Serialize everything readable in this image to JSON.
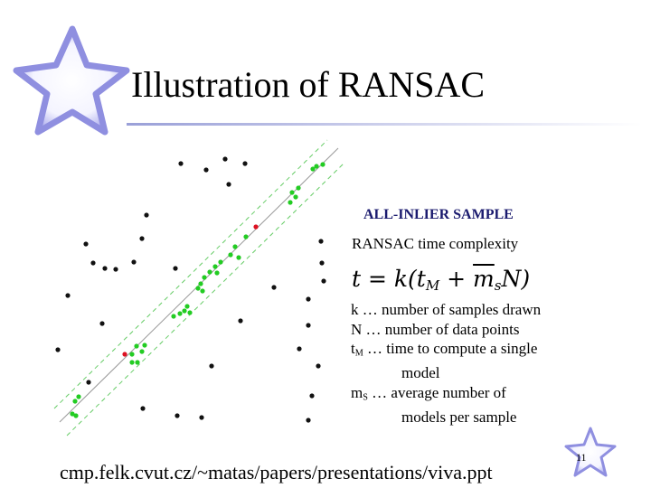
{
  "header": {
    "title": "Illustration of RANSAC"
  },
  "illustration": {
    "label": "ALL-INLIER SAMPLE"
  },
  "complexity": {
    "heading": "RANSAC time complexity",
    "formula": [
      {
        "text": "t = k(t"
      },
      {
        "sub": "M"
      },
      {
        "text": " + "
      },
      {
        "text": "m",
        "bar": true
      },
      {
        "sub": "s"
      },
      {
        "text": "N)"
      }
    ]
  },
  "definitions": [
    {
      "symbol": "k",
      "lines": [
        "… number of samples drawn"
      ]
    },
    {
      "symbol": "N",
      "lines": [
        "… number of data points"
      ]
    },
    {
      "symbol": "t",
      "sub": "M",
      "lines": [
        "… time to compute a single",
        "model"
      ]
    },
    {
      "symbol": "m",
      "sub": "S",
      "lines": [
        "… average number of",
        "models per sample"
      ]
    }
  ],
  "footer": {
    "url": "cmp.felk.cvut.cz/~matas/papers/presentations/viva.ppt",
    "page": "11"
  }
}
